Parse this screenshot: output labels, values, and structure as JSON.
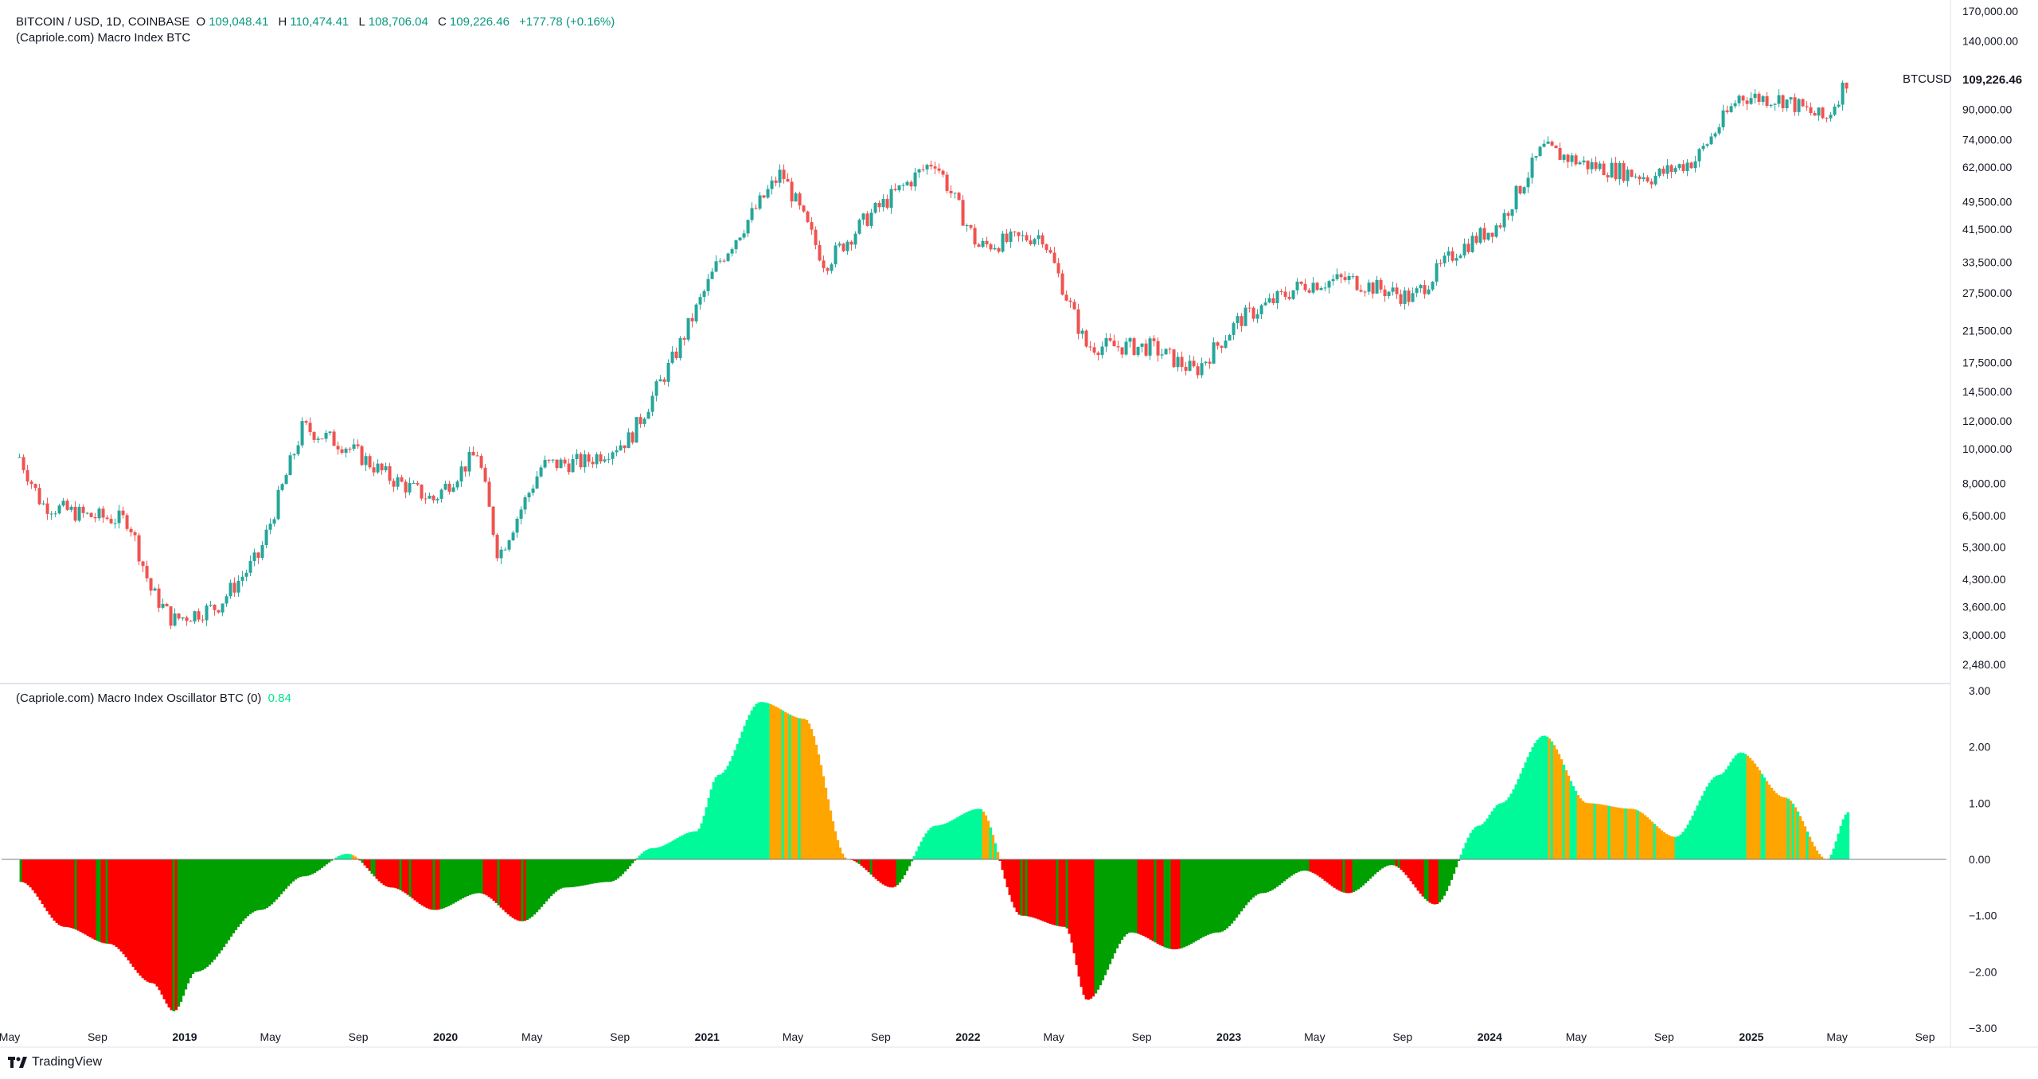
{
  "header": {
    "symbol": "BITCOIN / USD, 1D, COINBASE",
    "o_label": "O",
    "o_value": "109,048.41",
    "h_label": "H",
    "h_value": "110,474.41",
    "l_label": "L",
    "l_value": "108,706.04",
    "c_label": "C",
    "c_value": "109,226.46",
    "change": "+177.78 (+0.16%)",
    "indicator": "(Capriole.com) Macro Index BTC"
  },
  "oscillator_legend": {
    "name": "(Capriole.com) Macro Index Oscillator BTC (0)",
    "value": "0.84"
  },
  "price_label": {
    "symbol": "BTCUSD",
    "last": "109,226.46"
  },
  "branding": {
    "name": "TradingView"
  },
  "colors": {
    "up": "#26a69a",
    "down": "#ef5350",
    "accent": "#089981",
    "osc_cyan": "#00fa9a",
    "osc_orange": "#ffa500",
    "osc_green": "#00a000",
    "osc_red": "#ff0000"
  },
  "chart_data": [
    {
      "type": "line",
      "title": "BITCOIN / USD, 1D, COINBASE",
      "scale": "log",
      "x_ticks": [
        "May",
        "Sep",
        "2019",
        "May",
        "Sep",
        "2020",
        "May",
        "Sep",
        "2021",
        "May",
        "Sep",
        "2022",
        "May",
        "Sep",
        "2023",
        "May",
        "Sep",
        "2024",
        "May",
        "Sep",
        "2025",
        "May",
        "Sep"
      ],
      "y_ticks": [
        "170,000.00",
        "140,000.00",
        "109,226.46",
        "90,000.00",
        "74,000.00",
        "62,000.00",
        "49,500.00",
        "41,500.00",
        "33,500.00",
        "27,500.00",
        "21,500.00",
        "17,500.00",
        "14,500.00",
        "12,000.00",
        "10,000.00",
        "8,000.00",
        "6,500.00",
        "5,300.00",
        "4,300.00",
        "3,600.00",
        "3,000.00",
        "2,480.00"
      ],
      "series": [
        {
          "name": "BTCUSD",
          "x": [
            "2018-05",
            "2018-06",
            "2018-08",
            "2018-10",
            "2018-11",
            "2018-12",
            "2019-02",
            "2019-04",
            "2019-06",
            "2019-08",
            "2019-10",
            "2019-12",
            "2020-02",
            "2020-03",
            "2020-05",
            "2020-07",
            "2020-09",
            "2020-11",
            "2021-01",
            "2021-04",
            "2021-06",
            "2021-08",
            "2021-11",
            "2022-01",
            "2022-04",
            "2022-06",
            "2022-09",
            "2022-11",
            "2023-01",
            "2023-04",
            "2023-06",
            "2023-09",
            "2023-11",
            "2024-01",
            "2024-03",
            "2024-05",
            "2024-08",
            "2024-10",
            "2024-12",
            "2025-02",
            "2025-04",
            "2025-05"
          ],
          "values": [
            9500,
            7000,
            6500,
            6300,
            4000,
            3300,
            3600,
            5000,
            11500,
            10200,
            8300,
            7200,
            9800,
            5000,
            9000,
            9200,
            10700,
            18000,
            33000,
            60000,
            33000,
            45000,
            65000,
            37000,
            40000,
            19500,
            19300,
            16500,
            23000,
            29000,
            30000,
            26500,
            36000,
            43000,
            70000,
            63000,
            58000,
            65000,
            98000,
            96000,
            84000,
            109226
          ]
        }
      ]
    },
    {
      "type": "area",
      "title": "(Capriole.com) Macro Index Oscillator BTC (0)",
      "y_ticks": [
        "3.00",
        "2.00",
        "1.00",
        "0.00",
        "−1.00",
        "−2.00",
        "−3.00"
      ],
      "ylim": [
        -3.0,
        3.0
      ],
      "last_value": 0.84,
      "x": [
        "2018-05",
        "2018-07",
        "2018-09",
        "2018-11",
        "2018-12",
        "2019-01",
        "2019-04",
        "2019-06",
        "2019-08",
        "2019-10",
        "2019-12",
        "2020-02",
        "2020-04",
        "2020-06",
        "2020-08",
        "2020-10",
        "2020-12",
        "2021-01",
        "2021-03",
        "2021-05",
        "2021-07",
        "2021-09",
        "2021-11",
        "2022-01",
        "2022-03",
        "2022-05",
        "2022-06",
        "2022-08",
        "2022-10",
        "2022-12",
        "2023-02",
        "2023-04",
        "2023-06",
        "2023-08",
        "2023-10",
        "2023-12",
        "2024-01",
        "2024-03",
        "2024-05",
        "2024-07",
        "2024-09",
        "2024-11",
        "2024-12",
        "2025-02",
        "2025-04",
        "2025-05"
      ],
      "values": [
        -0.4,
        -1.2,
        -1.5,
        -2.2,
        -2.7,
        -2.0,
        -0.9,
        -0.3,
        0.1,
        -0.5,
        -0.9,
        -0.6,
        -1.1,
        -0.5,
        -0.4,
        0.2,
        0.5,
        1.5,
        2.8,
        2.5,
        0.0,
        -0.5,
        0.6,
        0.9,
        -1.0,
        -1.2,
        -2.5,
        -1.3,
        -1.6,
        -1.3,
        -0.6,
        -0.2,
        -0.6,
        -0.1,
        -0.8,
        0.6,
        1.0,
        2.2,
        1.0,
        0.9,
        0.4,
        1.5,
        1.9,
        1.1,
        0.0,
        0.84
      ]
    }
  ]
}
